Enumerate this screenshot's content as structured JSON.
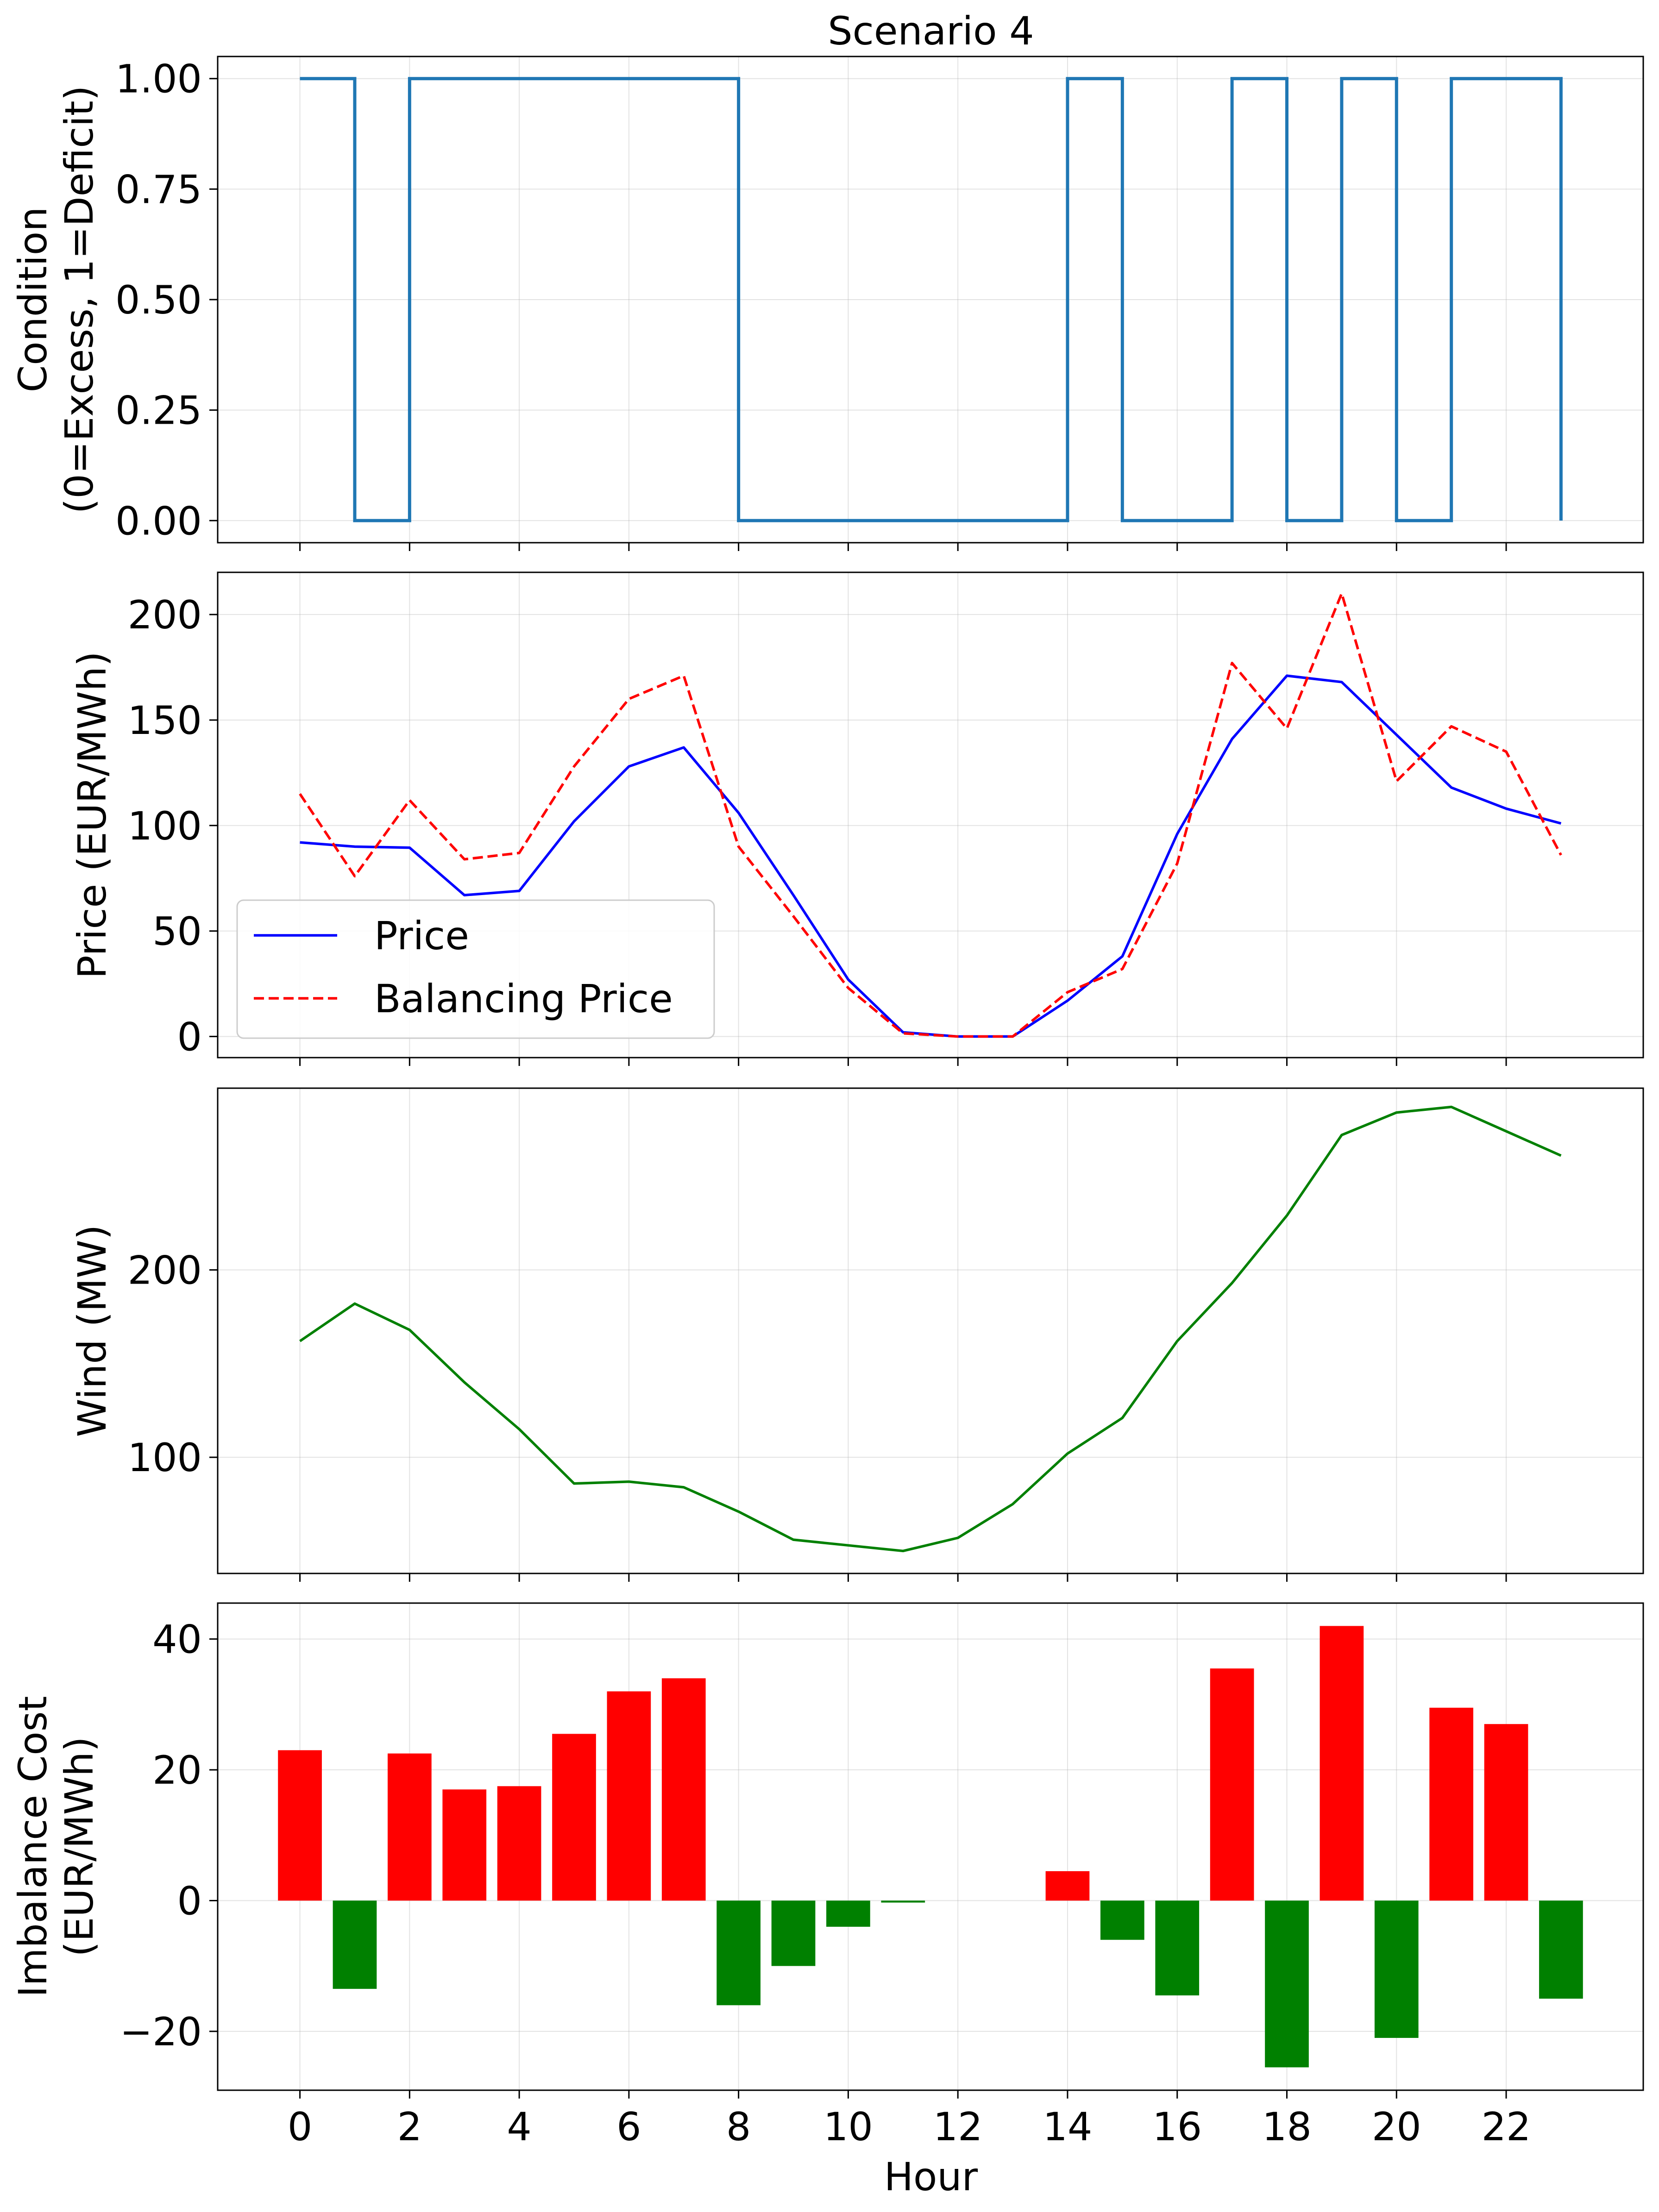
{
  "chart_data": {
    "type": "multi-panel",
    "title": "Scenario 4",
    "xlabel": "Hour",
    "x_ticks": [
      0,
      2,
      4,
      6,
      8,
      10,
      12,
      14,
      16,
      18,
      20,
      22
    ],
    "xlim": [
      -1.5,
      24.5
    ],
    "hours": [
      0,
      1,
      2,
      3,
      4,
      5,
      6,
      7,
      8,
      9,
      10,
      11,
      12,
      13,
      14,
      15,
      16,
      17,
      18,
      19,
      20,
      21,
      22,
      23
    ],
    "grid": true,
    "panels": [
      {
        "type": "step",
        "ylabel_lines": [
          "Condition",
          "(0=Excess, 1=Deficit)"
        ],
        "ylim": [
          -0.05,
          1.05
        ],
        "y_ticks": [
          0,
          0.25,
          0.5,
          0.75,
          1.0
        ],
        "y_tick_labels": [
          "0.00",
          "0.25",
          "0.50",
          "0.75",
          "1.00"
        ],
        "series": [
          {
            "color": "#1f77b4",
            "values": [
              1,
              0,
              1,
              1,
              1,
              1,
              1,
              1,
              0,
              0,
              0,
              0,
              0,
              0,
              1,
              0,
              0,
              1,
              0,
              1,
              0,
              1,
              1,
              0
            ]
          }
        ]
      },
      {
        "type": "line",
        "ylabel_lines": [
          "Price (EUR/MWh)"
        ],
        "ylim": [
          -10,
          220
        ],
        "y_ticks": [
          0,
          50,
          100,
          150,
          200
        ],
        "y_tick_labels": [
          "0",
          "50",
          "100",
          "150",
          "200"
        ],
        "legend_position": "lower-left",
        "series": [
          {
            "name": "Price",
            "color": "#0000ff",
            "dash": "solid",
            "values": [
              92,
              90,
              89.5,
              67,
              69,
              102,
              128,
              137,
              106,
              67,
              27,
              2,
              0,
              0,
              17,
              38,
              96,
              141,
              171,
              168,
              143,
              118,
              108,
              101
            ]
          },
          {
            "name": "Balancing Price",
            "color": "#ff0000",
            "dash": "dashed",
            "values": [
              115,
              76,
              112,
              84,
              87,
              128,
              160,
              171,
              90,
              57,
              23,
              1.5,
              0,
              0,
              21,
              32,
              82,
              177,
              146,
              210,
              121,
              147,
              135,
              86
            ]
          }
        ]
      },
      {
        "type": "line",
        "ylabel_lines": [
          "Wind (MW)"
        ],
        "ylim": [
          38,
          297
        ],
        "y_ticks": [
          100,
          200
        ],
        "y_tick_labels": [
          "100",
          "200"
        ],
        "series": [
          {
            "color": "#008000",
            "dash": "solid",
            "values": [
              162,
              182,
              168,
              140,
              115,
              86,
              87,
              84,
              71,
              56,
              53,
              50,
              57,
              75,
              102,
              121,
              162,
              193,
              229,
              272,
              284,
              287,
              274,
              261
            ]
          }
        ]
      },
      {
        "type": "bar",
        "ylabel_lines": [
          "Imbalance Cost",
          "(EUR/MWh)"
        ],
        "ylim": [
          -29,
          45.5
        ],
        "y_ticks": [
          -20,
          0,
          20,
          40
        ],
        "y_tick_labels": [
          "−20",
          "0",
          "20",
          "40"
        ],
        "positive_color": "#ff0000",
        "negative_color": "#008000",
        "values": [
          23,
          -13.5,
          22.5,
          17,
          17.5,
          25.5,
          32,
          34,
          -16,
          -10,
          -4,
          -0.3,
          0,
          0,
          4.5,
          -6,
          -14.5,
          35.5,
          -25.5,
          42,
          -21,
          29.5,
          27,
          -15
        ]
      }
    ]
  }
}
